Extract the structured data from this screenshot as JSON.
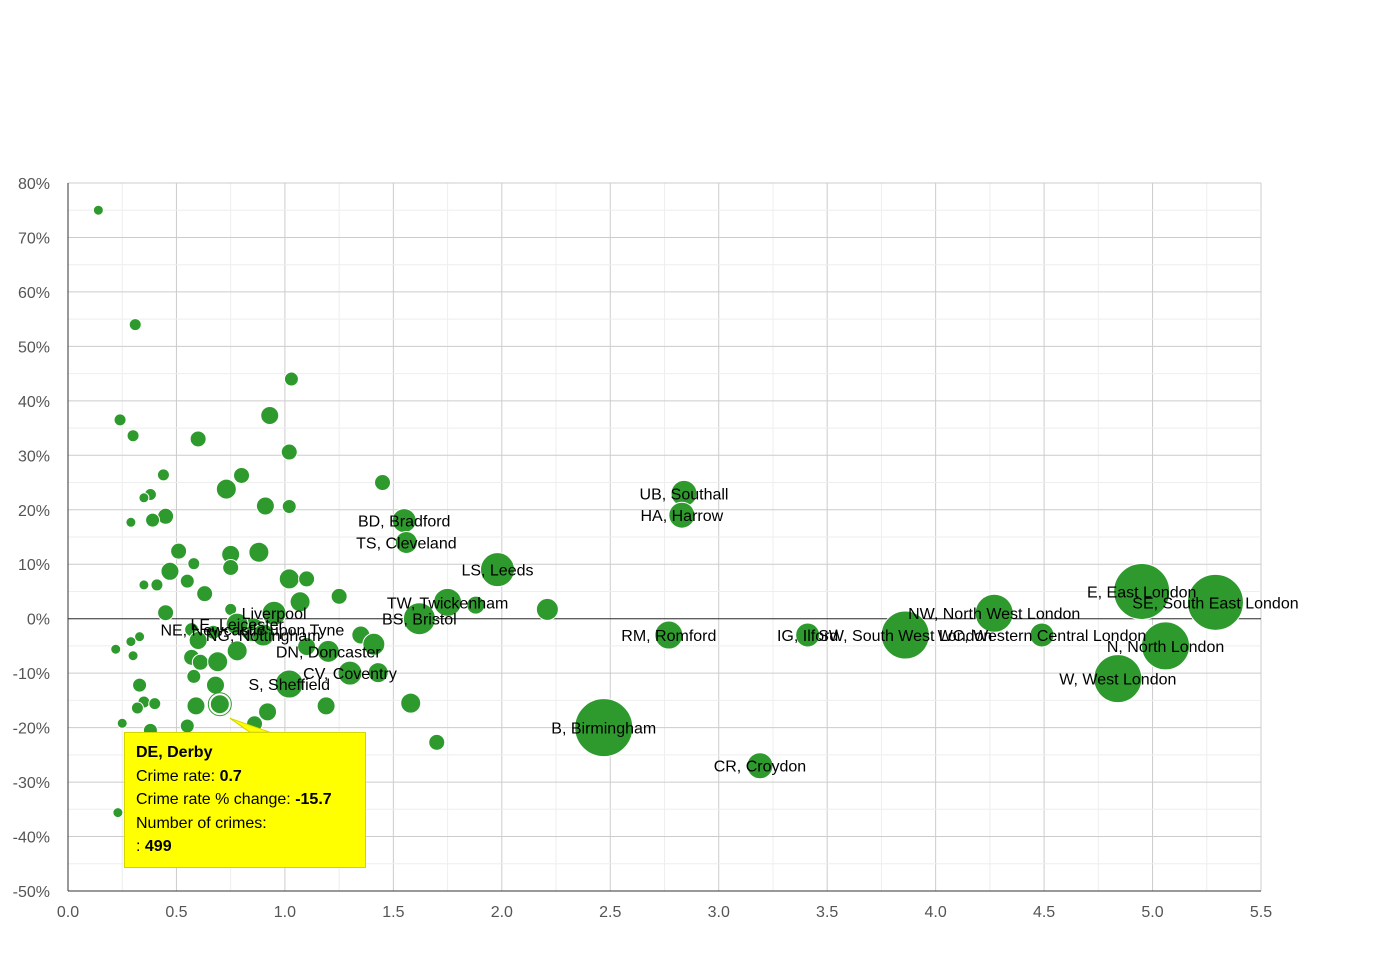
{
  "chart_data": {
    "type": "scatter",
    "title": "",
    "xlabel": "",
    "ylabel": "",
    "xlim": [
      0,
      5.5
    ],
    "ylim": [
      -50,
      80
    ],
    "x_ticks": [
      "0.0",
      "0.5",
      "1.0",
      "1.5",
      "2.0",
      "2.5",
      "3.0",
      "3.5",
      "4.0",
      "4.5",
      "5.0",
      "5.5"
    ],
    "y_ticks": [
      "80%",
      "70%",
      "60%",
      "50%",
      "40%",
      "30%",
      "20%",
      "10%",
      "0%",
      "-10%",
      "-20%",
      "-30%",
      "-40%",
      "-50%"
    ],
    "grid": true,
    "colors": {
      "point": "#2e9a2e",
      "point_edge": "#ffffff",
      "tooltip_bg": "#ffff00"
    },
    "labeled_points": [
      {
        "label": "UB, Southall",
        "x": 2.84,
        "y": 23,
        "r": 13
      },
      {
        "label": "HA, Harrow",
        "x": 2.83,
        "y": 19,
        "r": 13
      },
      {
        "label": "BD, Bradford",
        "x": 1.55,
        "y": 18,
        "r": 12
      },
      {
        "label": "TS, Cleveland",
        "x": 1.56,
        "y": 14,
        "r": 11
      },
      {
        "label": "LS, Leeds",
        "x": 1.98,
        "y": 9,
        "r": 17
      },
      {
        "label": "TW, Twickenham",
        "x": 1.75,
        "y": 3,
        "r": 14
      },
      {
        "label": "BS, Bristol",
        "x": 1.62,
        "y": 0,
        "r": 16
      },
      {
        "label": "Liverpool",
        "x": 0.95,
        "y": 1,
        "r": 12
      },
      {
        "label": "NE, Newcastle upon Tyne",
        "x": 0.85,
        "y": -2,
        "r": 12
      },
      {
        "label": "LE, Leicester",
        "x": 0.78,
        "y": -1,
        "r": 11
      },
      {
        "label": "NG, Nottingham",
        "x": 0.9,
        "y": -3,
        "r": 11
      },
      {
        "label": "DN, Doncaster",
        "x": 1.2,
        "y": -6,
        "r": 11
      },
      {
        "label": "CV, Coventry",
        "x": 1.3,
        "y": -10,
        "r": 12
      },
      {
        "label": "S, Sheffield",
        "x": 1.02,
        "y": -12,
        "r": 14
      },
      {
        "label": "RM, Romford",
        "x": 2.77,
        "y": -3,
        "r": 14
      },
      {
        "label": "IG, Ilford",
        "x": 3.41,
        "y": -3,
        "r": 12
      },
      {
        "label": "SW, South West London",
        "x": 3.86,
        "y": -3,
        "r": 24
      },
      {
        "label": "NW, North West London",
        "x": 4.27,
        "y": 1,
        "r": 19
      },
      {
        "label": "WC, Western Central London",
        "x": 4.49,
        "y": -3,
        "r": 12
      },
      {
        "label": "E, East London",
        "x": 4.95,
        "y": 5,
        "r": 28
      },
      {
        "label": "SE, South East London",
        "x": 5.29,
        "y": 3,
        "r": 28
      },
      {
        "label": "N, North London",
        "x": 5.06,
        "y": -5,
        "r": 24
      },
      {
        "label": "W, West London",
        "x": 4.84,
        "y": -11,
        "r": 24
      },
      {
        "label": "B, Birmingham",
        "x": 2.47,
        "y": -20,
        "r": 29
      },
      {
        "label": "CR, Croydon",
        "x": 3.19,
        "y": -27,
        "r": 13
      }
    ],
    "points": [
      {
        "x": 0.14,
        "y": 75,
        "r": 5
      },
      {
        "x": 0.31,
        "y": 54,
        "r": 6
      },
      {
        "x": 1.03,
        "y": 44,
        "r": 7
      },
      {
        "x": 0.24,
        "y": 36.5,
        "r": 6
      },
      {
        "x": 0.93,
        "y": 37.3,
        "r": 9
      },
      {
        "x": 0.3,
        "y": 33.6,
        "r": 6
      },
      {
        "x": 0.6,
        "y": 33,
        "r": 8
      },
      {
        "x": 1.02,
        "y": 30.6,
        "r": 8
      },
      {
        "x": 0.44,
        "y": 26.4,
        "r": 6
      },
      {
        "x": 0.8,
        "y": 26.3,
        "r": 8
      },
      {
        "x": 1.45,
        "y": 25,
        "r": 8
      },
      {
        "x": 0.73,
        "y": 23.8,
        "r": 10
      },
      {
        "x": 0.38,
        "y": 22.8,
        "r": 6
      },
      {
        "x": 0.35,
        "y": 22.2,
        "r": 5
      },
      {
        "x": 0.91,
        "y": 20.7,
        "r": 9
      },
      {
        "x": 1.02,
        "y": 20.6,
        "r": 7
      },
      {
        "x": 0.45,
        "y": 18.8,
        "r": 8
      },
      {
        "x": 0.39,
        "y": 18.1,
        "r": 7
      },
      {
        "x": 0.29,
        "y": 17.7,
        "r": 5
      },
      {
        "x": 0.51,
        "y": 12.4,
        "r": 8
      },
      {
        "x": 0.88,
        "y": 12.2,
        "r": 10
      },
      {
        "x": 0.75,
        "y": 11.8,
        "r": 9
      },
      {
        "x": 0.58,
        "y": 10.1,
        "r": 6
      },
      {
        "x": 0.75,
        "y": 9.4,
        "r": 8
      },
      {
        "x": 0.47,
        "y": 8.7,
        "r": 9
      },
      {
        "x": 1.02,
        "y": 7.3,
        "r": 10
      },
      {
        "x": 1.1,
        "y": 7.3,
        "r": 8
      },
      {
        "x": 0.55,
        "y": 6.9,
        "r": 7
      },
      {
        "x": 0.41,
        "y": 6.2,
        "r": 6
      },
      {
        "x": 0.35,
        "y": 6.2,
        "r": 5
      },
      {
        "x": 0.63,
        "y": 4.6,
        "r": 8
      },
      {
        "x": 1.25,
        "y": 4.1,
        "r": 8
      },
      {
        "x": 1.07,
        "y": 3.1,
        "r": 10
      },
      {
        "x": 2.21,
        "y": 1.7,
        "r": 11
      },
      {
        "x": 1.88,
        "y": 2.5,
        "r": 9
      },
      {
        "x": 0.45,
        "y": 1.1,
        "r": 8
      },
      {
        "x": 0.75,
        "y": 1.7,
        "r": 6
      },
      {
        "x": 0.57,
        "y": -2,
        "r": 7
      },
      {
        "x": 0.33,
        "y": -3.3,
        "r": 5
      },
      {
        "x": 0.29,
        "y": -4.2,
        "r": 5
      },
      {
        "x": 0.6,
        "y": -4,
        "r": 9
      },
      {
        "x": 0.67,
        "y": -2.5,
        "r": 7
      },
      {
        "x": 0.22,
        "y": -5.6,
        "r": 5
      },
      {
        "x": 0.3,
        "y": -6.8,
        "r": 5
      },
      {
        "x": 0.57,
        "y": -7.1,
        "r": 8
      },
      {
        "x": 0.78,
        "y": -5.9,
        "r": 10
      },
      {
        "x": 1.1,
        "y": -5.1,
        "r": 9
      },
      {
        "x": 1.35,
        "y": -3,
        "r": 9
      },
      {
        "x": 1.41,
        "y": -4.7,
        "r": 11
      },
      {
        "x": 0.61,
        "y": -8,
        "r": 8
      },
      {
        "x": 0.69,
        "y": -7.9,
        "r": 10
      },
      {
        "x": 0.58,
        "y": -10.6,
        "r": 7
      },
      {
        "x": 0.33,
        "y": -12.2,
        "r": 7
      },
      {
        "x": 0.68,
        "y": -12.2,
        "r": 9
      },
      {
        "x": 1.43,
        "y": -9.9,
        "r": 10
      },
      {
        "x": 0.35,
        "y": -15.3,
        "r": 6
      },
      {
        "x": 0.4,
        "y": -15.6,
        "r": 6
      },
      {
        "x": 0.32,
        "y": -16.4,
        "r": 6
      },
      {
        "x": 0.59,
        "y": -16,
        "r": 9
      },
      {
        "x": 0.92,
        "y": -17.1,
        "r": 9
      },
      {
        "x": 1.19,
        "y": -16,
        "r": 9
      },
      {
        "x": 1.58,
        "y": -15.5,
        "r": 10
      },
      {
        "x": 0.25,
        "y": -19.2,
        "r": 5
      },
      {
        "x": 0.55,
        "y": -19.7,
        "r": 7
      },
      {
        "x": 0.86,
        "y": -19.3,
        "r": 8
      },
      {
        "x": 0.38,
        "y": -20.5,
        "r": 7
      },
      {
        "x": 1.7,
        "y": -22.7,
        "r": 8
      },
      {
        "x": 0.23,
        "y": -35.6,
        "r": 5
      }
    ],
    "highlighted": {
      "label": "DE, Derby",
      "x": 0.7,
      "y": -15.7,
      "r": 10
    }
  },
  "tooltip": {
    "title": "DE, Derby",
    "rate_label": "Crime rate: ",
    "rate_value": "0.7",
    "change_label": "Crime rate % change: ",
    "change_value": "-15.7",
    "count_label": "Number of crimes:",
    "count_prefix": ": ",
    "count_value": "499"
  }
}
